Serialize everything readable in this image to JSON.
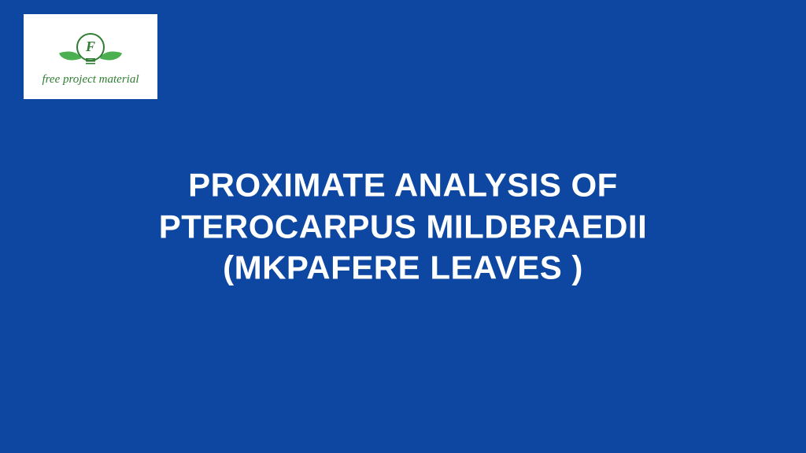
{
  "background_color": "#0d47a1",
  "logo": {
    "background_color": "#ffffff",
    "icon_color": "#2e7d32",
    "leaf_color": "#4caf50",
    "letter": "F",
    "text": "free project material",
    "text_color": "#2e7d32",
    "text_fontsize": 15
  },
  "title": {
    "text": "PROXIMATE ANALYSIS OF PTEROCARPUS MILDBRAEDII (MKPAFERE LEAVES )",
    "color": "#ffffff",
    "fontsize": 42,
    "fontweight": 900
  }
}
